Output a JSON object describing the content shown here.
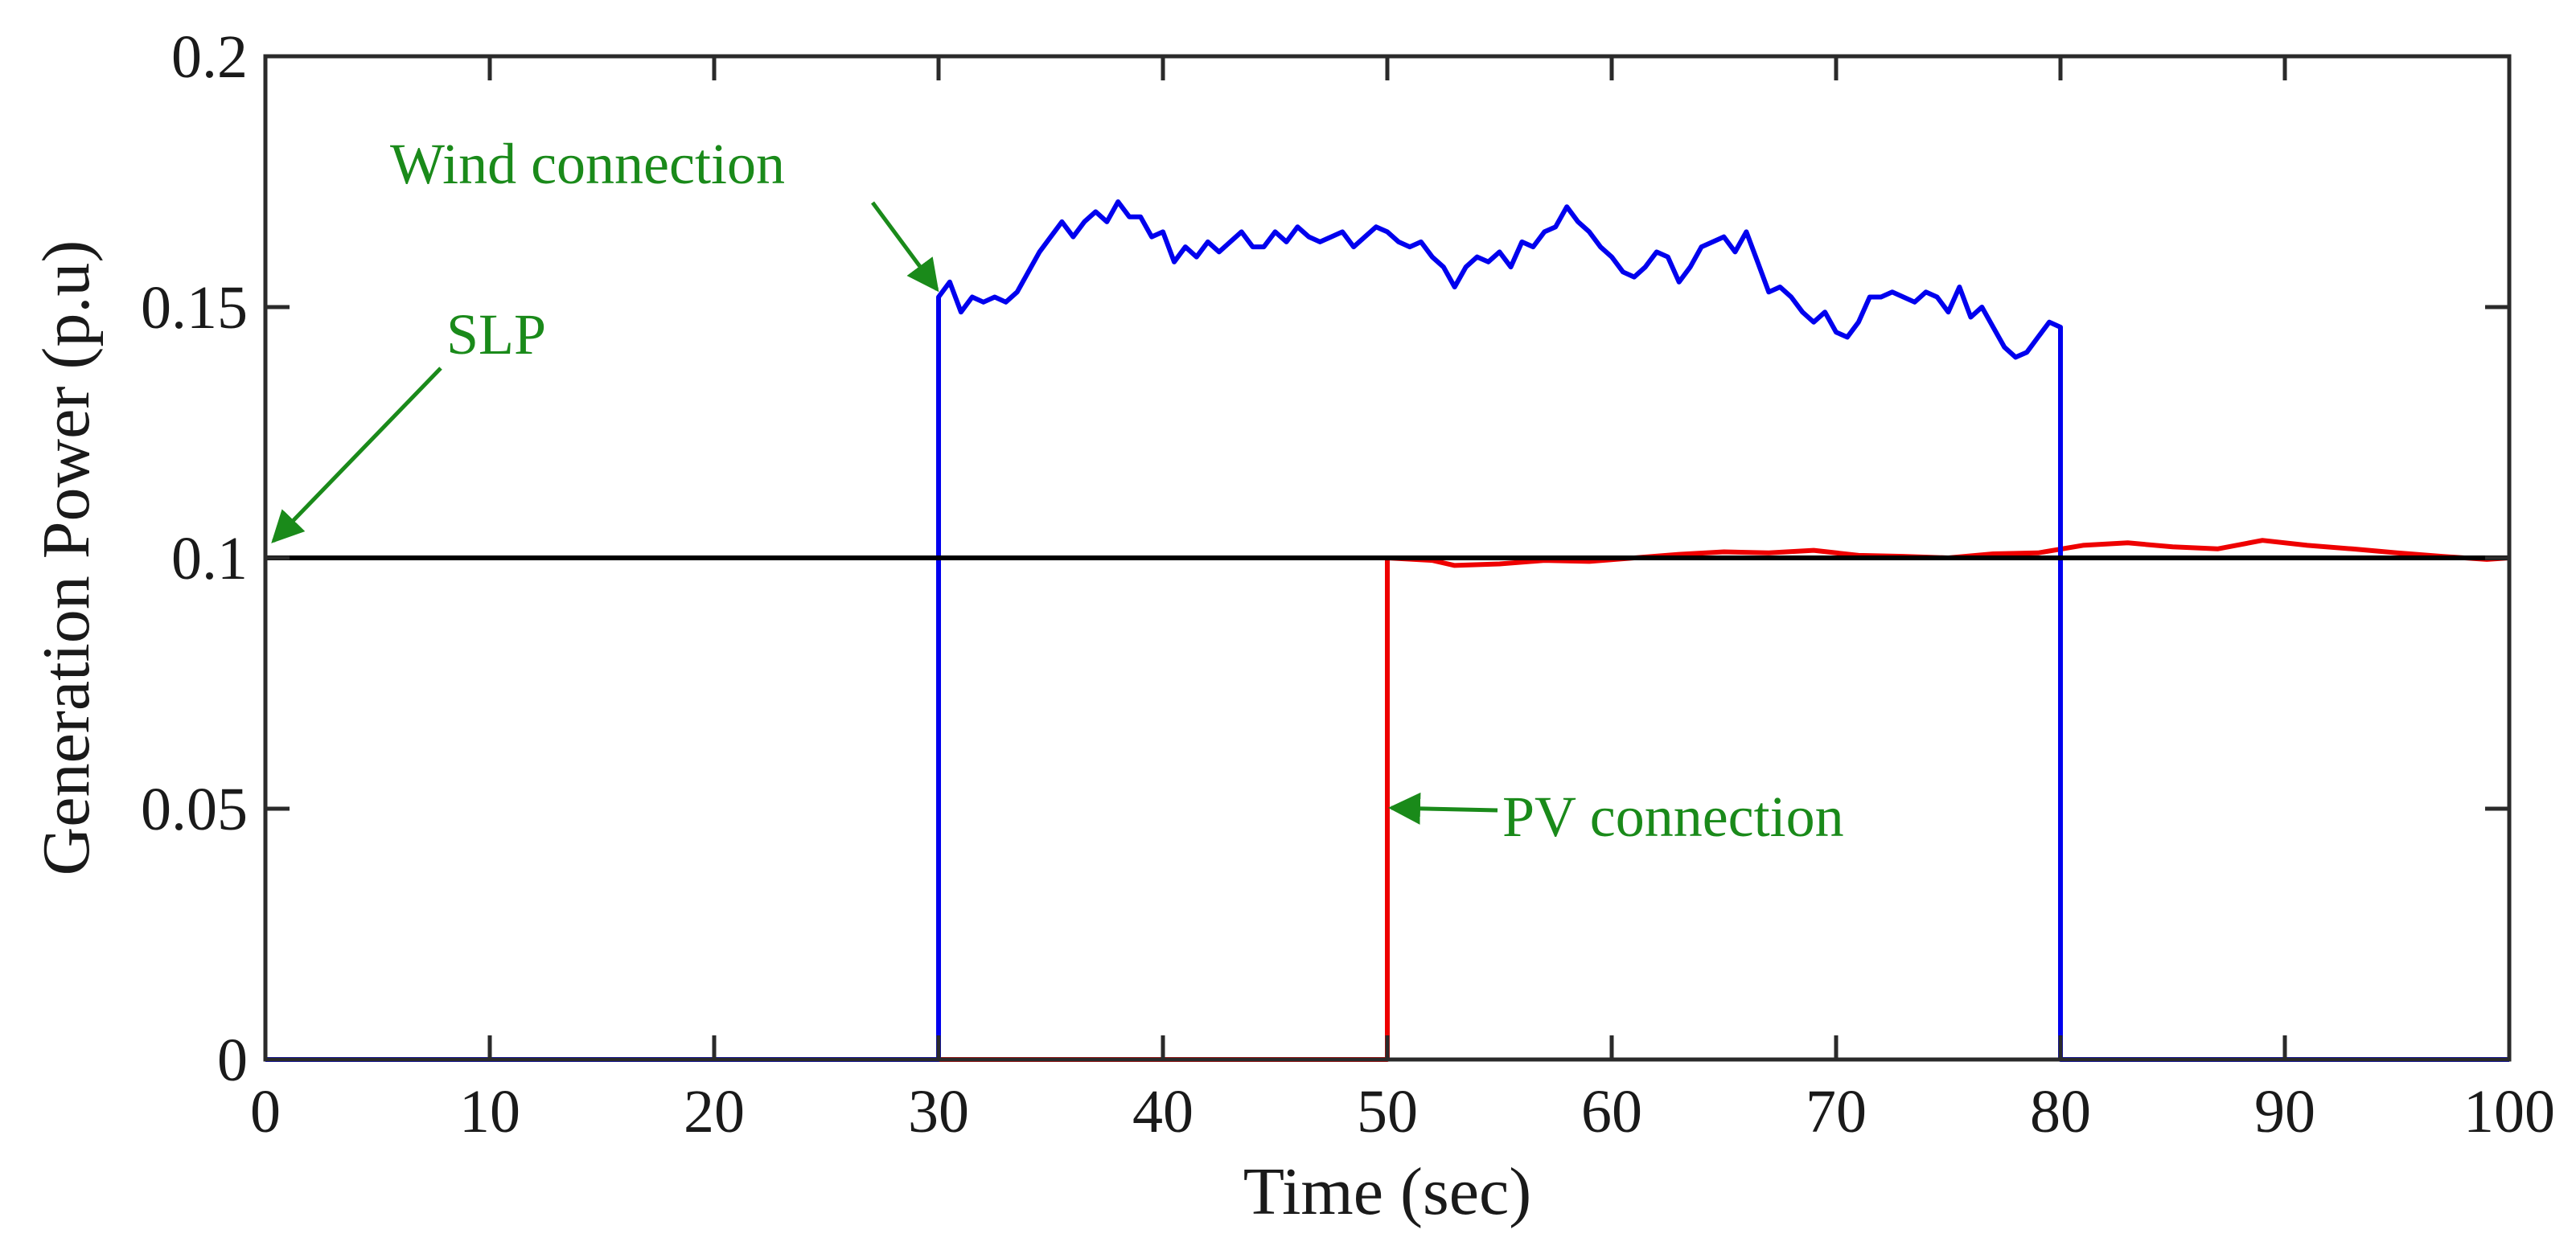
{
  "chart_data": {
    "type": "line",
    "title": "",
    "xlabel": "Time (sec)",
    "ylabel": "Generation Power (p.u)",
    "xlim": [
      0,
      100
    ],
    "ylim": [
      0,
      0.2
    ],
    "xticks": [
      0,
      10,
      20,
      30,
      40,
      50,
      60,
      70,
      80,
      90,
      100
    ],
    "xtick_labels": [
      "0",
      "10",
      "20",
      "30",
      "40",
      "50",
      "60",
      "70",
      "80",
      "90",
      "100"
    ],
    "yticks": [
      0,
      0.05,
      0.1,
      0.15,
      0.2
    ],
    "ytick_labels": [
      "0",
      "0.05",
      "0.1",
      "0.15",
      "0.2"
    ],
    "grid": false,
    "series": [
      {
        "name": "SLP",
        "color": "#000000",
        "x": [
          0,
          100
        ],
        "y": [
          0.1,
          0.1
        ]
      },
      {
        "name": "Wind",
        "color": "#0000ee",
        "x": [
          0,
          30,
          30,
          30.5,
          31,
          31.5,
          32,
          32.5,
          33,
          33.5,
          34,
          34.5,
          35,
          35.5,
          36,
          36.5,
          37,
          37.5,
          38,
          38.5,
          39,
          39.5,
          40,
          40.5,
          41,
          41.5,
          42,
          42.5,
          43,
          43.5,
          44,
          44.5,
          45,
          45.5,
          46,
          46.5,
          47,
          47.5,
          48,
          48.5,
          49,
          49.5,
          50,
          50.5,
          51,
          51.5,
          52,
          52.5,
          53,
          53.5,
          54,
          54.5,
          55,
          55.5,
          56,
          56.5,
          57,
          57.5,
          58,
          58.5,
          59,
          59.5,
          60,
          60.5,
          61,
          61.5,
          62,
          62.5,
          63,
          63.5,
          64,
          64.5,
          65,
          65.5,
          66,
          66.5,
          67,
          67.5,
          68,
          68.5,
          69,
          69.5,
          70,
          70.5,
          71,
          71.5,
          72,
          72.5,
          73,
          73.5,
          74,
          74.5,
          75,
          75.5,
          76,
          76.5,
          77,
          77.5,
          78,
          78.5,
          79,
          79.5,
          80,
          80,
          100
        ],
        "y": [
          0,
          0,
          0.152,
          0.155,
          0.149,
          0.152,
          0.151,
          0.152,
          0.151,
          0.153,
          0.157,
          0.161,
          0.164,
          0.167,
          0.164,
          0.167,
          0.169,
          0.167,
          0.171,
          0.168,
          0.168,
          0.164,
          0.165,
          0.159,
          0.162,
          0.16,
          0.163,
          0.161,
          0.163,
          0.165,
          0.162,
          0.162,
          0.165,
          0.163,
          0.166,
          0.164,
          0.163,
          0.164,
          0.165,
          0.162,
          0.164,
          0.166,
          0.165,
          0.163,
          0.162,
          0.163,
          0.16,
          0.158,
          0.154,
          0.158,
          0.16,
          0.159,
          0.161,
          0.158,
          0.163,
          0.162,
          0.165,
          0.166,
          0.17,
          0.167,
          0.165,
          0.162,
          0.16,
          0.157,
          0.156,
          0.158,
          0.161,
          0.16,
          0.155,
          0.158,
          0.162,
          0.163,
          0.164,
          0.161,
          0.165,
          0.159,
          0.153,
          0.154,
          0.152,
          0.149,
          0.147,
          0.149,
          0.145,
          0.144,
          0.147,
          0.152,
          0.152,
          0.153,
          0.152,
          0.151,
          0.153,
          0.152,
          0.149,
          0.154,
          0.148,
          0.15,
          0.146,
          0.142,
          0.14,
          0.141,
          0.144,
          0.147,
          0.146,
          0.0,
          0.0
        ]
      },
      {
        "name": "PV",
        "color": "#ee0000",
        "x": [
          0,
          50,
          50,
          52,
          53,
          55,
          57,
          59,
          61,
          63,
          65,
          67,
          69,
          71,
          73,
          75,
          77,
          79,
          81,
          83,
          85,
          87,
          89,
          91,
          93,
          95,
          97,
          99,
          100
        ],
        "y": [
          0,
          0,
          0.1,
          0.0995,
          0.0985,
          0.0988,
          0.0995,
          0.0993,
          0.1,
          0.1007,
          0.1012,
          0.101,
          0.1015,
          0.1005,
          0.1003,
          0.1,
          0.1008,
          0.101,
          0.1025,
          0.103,
          0.1022,
          0.1018,
          0.1035,
          0.1025,
          0.1018,
          0.101,
          0.1003,
          0.0997,
          0.1
        ]
      }
    ],
    "annotations": [
      {
        "id": "slp",
        "text": "SLP",
        "color": "#1a8a1a",
        "arrow_to": [
          0.2,
          0.1
        ]
      },
      {
        "id": "wind",
        "text": "Wind connection",
        "color": "#1a8a1a",
        "arrow_to": [
          29.8,
          0.1525
        ]
      },
      {
        "id": "pv",
        "text": "PV connection",
        "color": "#1a8a1a",
        "arrow_to": [
          50.2,
          0.05
        ]
      }
    ]
  }
}
